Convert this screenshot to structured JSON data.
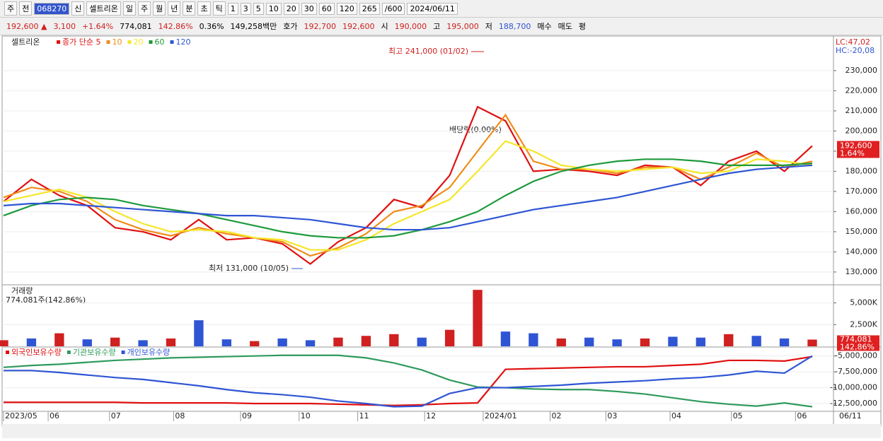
{
  "toolbar": {
    "items": [
      "주",
      "전",
      "068270",
      "신",
      "셀트리온",
      "일",
      "주",
      "월",
      "년",
      "분",
      "초",
      "틱",
      "1",
      "3",
      "5",
      "10",
      "20",
      "30",
      "60",
      "120"
    ],
    "count": "265",
    "max": "/600",
    "date": "2024/06/11"
  },
  "quote_bar": {
    "items": [
      "192,600 ▲",
      "3,100",
      "+1.64%",
      "774,081",
      "142.86%",
      "0.36%",
      "149,258백만",
      "호가",
      "192,700",
      "192,600",
      "시",
      "190,000",
      "고",
      "195,000",
      "저",
      "188,700"
    ],
    "buttons": [
      "매수",
      "매도",
      "평"
    ]
  },
  "chart_data": [
    {
      "type": "line",
      "title": "셀트리온",
      "xlim": [
        0,
        29
      ],
      "ylim": [
        124000,
        246800
      ],
      "yticks": [
        {
          "value": 130000,
          "label": "130,000"
        },
        {
          "value": 140000,
          "label": "140,000"
        },
        {
          "value": 150000,
          "label": "150,000"
        },
        {
          "value": 160000,
          "label": "160,000"
        },
        {
          "value": 170000,
          "label": "170,000"
        },
        {
          "value": 180000,
          "label": "180,000"
        },
        {
          "value": 190000,
          "label": "190,000"
        },
        {
          "value": 200000,
          "label": "200,000"
        },
        {
          "value": 210000,
          "label": "210,000"
        },
        {
          "value": 220000,
          "label": "220,000"
        },
        {
          "value": 230000,
          "label": "230,000"
        }
      ],
      "series": [
        {
          "name": "종가 단순 5",
          "color": "#e01010",
          "values": [
            165000,
            176000,
            168000,
            163000,
            152000,
            150000,
            146000,
            156000,
            146000,
            147000,
            144000,
            134000,
            145000,
            152000,
            166000,
            162000,
            178000,
            212000,
            205000,
            180000,
            181000,
            180000,
            178000,
            183000,
            182000,
            173000,
            185000,
            190000,
            180000,
            192600
          ]
        },
        {
          "name": "10",
          "color": "#f08c1a",
          "values": [
            167000,
            172000,
            170000,
            165000,
            156000,
            151000,
            148000,
            152000,
            149000,
            147000,
            145000,
            138000,
            142000,
            149000,
            160000,
            163000,
            172000,
            190000,
            208000,
            185000,
            181000,
            181000,
            179000,
            182000,
            182000,
            176000,
            182000,
            189000,
            182000,
            185000
          ]
        },
        {
          "name": "20",
          "color": "#f5e628",
          "values": [
            165000,
            168000,
            171000,
            167000,
            160000,
            154000,
            150000,
            151000,
            150000,
            147000,
            146000,
            141000,
            141000,
            146000,
            154000,
            160000,
            166000,
            180000,
            195000,
            190000,
            183000,
            181000,
            180000,
            181000,
            182000,
            179000,
            180000,
            186000,
            185000,
            183000
          ]
        },
        {
          "name": "60",
          "color": "#1e9a3c",
          "values": [
            158000,
            163000,
            166000,
            167000,
            166000,
            163000,
            161000,
            159000,
            156000,
            153000,
            150000,
            148000,
            147000,
            147000,
            148000,
            151000,
            155000,
            160000,
            168000,
            175000,
            180000,
            183000,
            185000,
            186000,
            186000,
            185000,
            183000,
            183000,
            183000,
            184000
          ]
        },
        {
          "name": "120",
          "color": "#2f55d4",
          "values": [
            163000,
            164000,
            164000,
            163000,
            162000,
            161000,
            160000,
            159000,
            158000,
            158000,
            157000,
            156000,
            154000,
            152000,
            151000,
            151000,
            152000,
            155000,
            158000,
            161000,
            163000,
            165000,
            167000,
            170000,
            173000,
            176000,
            179000,
            181000,
            182000,
            183000
          ]
        }
      ],
      "annotations": [
        "최고 241,000 (01/02)",
        "최저 131,000 (10/05)",
        "배당락(0.00%)"
      ],
      "last_label": "192,600",
      "change_label": "1.64%",
      "lc": "LC:47,02",
      "hc": "HC:-20,08"
    },
    {
      "type": "bar",
      "title": "거래량",
      "subtitle": "774,081주(142,86%)",
      "xlim": [
        0,
        29
      ],
      "ylim": [
        0,
        7000000
      ],
      "yticks": [
        {
          "value": 2500000,
          "label": "2,500K"
        },
        {
          "value": 5000000,
          "label": "5,000K"
        }
      ],
      "values": [
        700000,
        900000,
        1500000,
        800000,
        1000000,
        700000,
        900000,
        3000000,
        800000,
        600000,
        900000,
        700000,
        1000000,
        1200000,
        1400000,
        1000000,
        1900000,
        6500000,
        1700000,
        1500000,
        900000,
        1000000,
        800000,
        900000,
        1100000,
        1000000,
        1400000,
        1200000,
        900000,
        774081
      ],
      "colors": [
        "#d02020",
        "#2f55d4",
        "#d02020",
        "#2f55d4",
        "#d02020",
        "#2f55d4",
        "#d02020",
        "#2f55d4",
        "#2f55d4",
        "#d02020",
        "#2f55d4",
        "#2f55d4",
        "#d02020",
        "#d02020",
        "#d02020",
        "#2f55d4",
        "#d02020",
        "#d02020",
        "#2f55d4",
        "#2f55d4",
        "#d02020",
        "#2f55d4",
        "#2f55d4",
        "#d02020",
        "#2f55d4",
        "#2f55d4",
        "#d02020",
        "#2f55d4",
        "#2f55d4",
        "#d02020"
      ],
      "value_label": "774,081",
      "pct_label": "142,86%"
    },
    {
      "type": "line",
      "xlim": [
        0,
        29
      ],
      "ylim": [
        -13500000,
        -3700000
      ],
      "yticks": [
        {
          "value": -5000000,
          "label": "-5,000,000"
        },
        {
          "value": -7500000,
          "label": "-7,500,000"
        },
        {
          "value": -10000000,
          "label": "-10,000,000"
        },
        {
          "value": -12500000,
          "label": "-12,500,000"
        }
      ],
      "xticks": [
        {
          "value": 0,
          "label": "2023/05"
        },
        {
          "value": 1.6,
          "label": "06"
        },
        {
          "value": 3.8,
          "label": "07"
        },
        {
          "value": 6.1,
          "label": "08"
        },
        {
          "value": 8.5,
          "label": "09"
        },
        {
          "value": 10.6,
          "label": "10"
        },
        {
          "value": 12.7,
          "label": "11"
        },
        {
          "value": 15.1,
          "label": "12"
        },
        {
          "value": 17.2,
          "label": "2024/01"
        },
        {
          "value": 19.6,
          "label": "02"
        },
        {
          "value": 21.6,
          "label": "03"
        },
        {
          "value": 23.9,
          "label": "04"
        },
        {
          "value": 26.1,
          "label": "05"
        },
        {
          "value": 28.4,
          "label": "06"
        }
      ],
      "end_label": "06/11",
      "series": [
        {
          "name": "외국인보유수량",
          "color": "#e01010",
          "values": [
            -12300000,
            -12300000,
            -12300000,
            -12300000,
            -12300000,
            -12400000,
            -12400000,
            -12400000,
            -12400000,
            -12500000,
            -12500000,
            -12500000,
            -12600000,
            -12700000,
            -12800000,
            -12700000,
            -12500000,
            -12400000,
            -7100000,
            -7000000,
            -6900000,
            -6800000,
            -6700000,
            -6700000,
            -6500000,
            -6300000,
            -5700000,
            -5700000,
            -5800000,
            -5100000
          ]
        },
        {
          "name": "기관보유수량",
          "color": "#2e9a5c",
          "values": [
            -6800000,
            -6500000,
            -6300000,
            -6000000,
            -5700000,
            -5500000,
            -5300000,
            -5200000,
            -5100000,
            -5000000,
            -4900000,
            -4900000,
            -4900000,
            -5300000,
            -6100000,
            -7200000,
            -8800000,
            -9900000,
            -10000000,
            -10200000,
            -10300000,
            -10300000,
            -10600000,
            -11000000,
            -11600000,
            -12200000,
            -12600000,
            -12900000,
            -12400000,
            -13000000
          ]
        },
        {
          "name": "개인보유수량",
          "color": "#2f55d4",
          "values": [
            -7300000,
            -7300000,
            -7600000,
            -8000000,
            -8400000,
            -8700000,
            -9200000,
            -9700000,
            -10300000,
            -10800000,
            -11100000,
            -11500000,
            -12100000,
            -12500000,
            -13000000,
            -12900000,
            -10900000,
            -10000000,
            -10000000,
            -9800000,
            -9600000,
            -9300000,
            -9100000,
            -8900000,
            -8600000,
            -8400000,
            -8000000,
            -7400000,
            -7700000,
            -5000000
          ]
        }
      ]
    }
  ]
}
